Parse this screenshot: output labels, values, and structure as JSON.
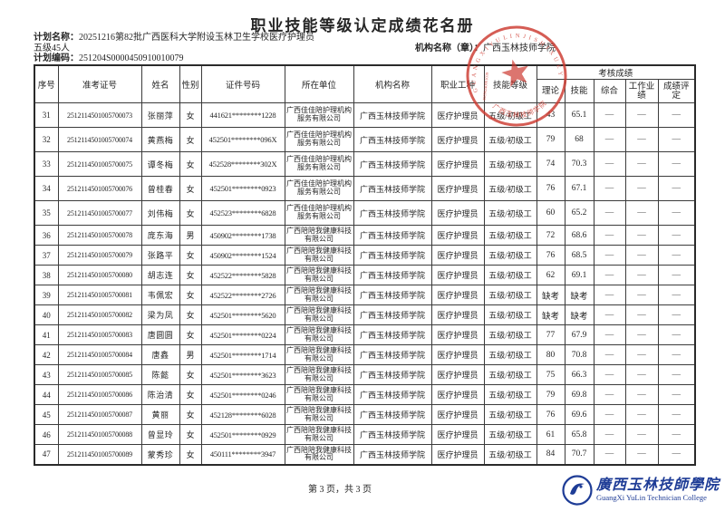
{
  "page": {
    "title": "职业技能等级认定成绩花名册",
    "plan_name_label": "计划名称：",
    "plan_name_line1": "20251216第82批广西医科大学附设玉林卫生学校医疗护理员",
    "plan_name_line2": "五级45人",
    "plan_code_label": "计划编码：",
    "plan_code": "251204S0000450910010079",
    "org_label": "机构名称（章）：",
    "org_name": "广西玉林技师学院",
    "footer_page": "第 3 页，共 3 页"
  },
  "stamp": {
    "arc_text": "G U A N G X I Y U L I N J I S H I X U E Y U A N",
    "code_text": "45090240001039",
    "bottom_text": "广西玉林技师学院",
    "color": "#cd3a30"
  },
  "logo": {
    "cn": "廣西玉林技師學院",
    "en": "GuangXi YuLin Technician College",
    "color": "#1e3c96"
  },
  "table": {
    "headers": {
      "no": "序号",
      "ticket": "准考证号",
      "name": "姓名",
      "gender": "性别",
      "id_number": "证件号码",
      "company": "所在单位",
      "org": "机构名称",
      "occupation": "职业工种",
      "level": "技能等级",
      "scores_group": "考核成绩",
      "theory": "理论",
      "skill": "技能",
      "comprehensive": "综合",
      "work_perf": "工作业绩",
      "evaluation": "成绩评定"
    },
    "rows": [
      {
        "no": "31",
        "ticket": "2512114501005700073",
        "name": "张丽萍",
        "gender": "女",
        "id_number": "441621********1228",
        "company": "广西佳佳陪护理机构服务有限公司",
        "org": "广西玉林技师学院",
        "occupation": "医疗护理员",
        "level": "五级/初级工",
        "theory": "43",
        "skill": "65.1",
        "comprehensive": "—",
        "work_perf": "—",
        "evaluation": "—"
      },
      {
        "no": "32",
        "ticket": "2512114501005700074",
        "name": "黄燕梅",
        "gender": "女",
        "id_number": "452501********096X",
        "company": "广西佳佳陪护理机构服务有限公司",
        "org": "广西玉林技师学院",
        "occupation": "医疗护理员",
        "level": "五级/初级工",
        "theory": "79",
        "skill": "68",
        "comprehensive": "—",
        "work_perf": "—",
        "evaluation": "—"
      },
      {
        "no": "33",
        "ticket": "2512114501005700075",
        "name": "谭冬梅",
        "gender": "女",
        "id_number": "452528********302X",
        "company": "广西佳佳陪护理机构服务有限公司",
        "org": "广西玉林技师学院",
        "occupation": "医疗护理员",
        "level": "五级/初级工",
        "theory": "74",
        "skill": "70.3",
        "comprehensive": "—",
        "work_perf": "—",
        "evaluation": "—"
      },
      {
        "no": "34",
        "ticket": "2512114501005700076",
        "name": "曾桂春",
        "gender": "女",
        "id_number": "452501********0923",
        "company": "广西佳佳陪护理机构服务有限公司",
        "org": "广西玉林技师学院",
        "occupation": "医疗护理员",
        "level": "五级/初级工",
        "theory": "76",
        "skill": "67.1",
        "comprehensive": "—",
        "work_perf": "—",
        "evaluation": "—"
      },
      {
        "no": "35",
        "ticket": "2512114501005700077",
        "name": "刘伟梅",
        "gender": "女",
        "id_number": "452523********6828",
        "company": "广西佳佳陪护理机构服务有限公司",
        "org": "广西玉林技师学院",
        "occupation": "医疗护理员",
        "level": "五级/初级工",
        "theory": "60",
        "skill": "65.2",
        "comprehensive": "—",
        "work_perf": "—",
        "evaluation": "—"
      },
      {
        "no": "36",
        "ticket": "2512114501005700078",
        "name": "庞东海",
        "gender": "男",
        "id_number": "450902********1738",
        "company": "广西陪陪我健康科技有限公司",
        "org": "广西玉林技师学院",
        "occupation": "医疗护理员",
        "level": "五级/初级工",
        "theory": "72",
        "skill": "68.6",
        "comprehensive": "—",
        "work_perf": "—",
        "evaluation": "—"
      },
      {
        "no": "37",
        "ticket": "2512114501005700079",
        "name": "张路平",
        "gender": "女",
        "id_number": "450902********1524",
        "company": "广西陪陪我健康科技有限公司",
        "org": "广西玉林技师学院",
        "occupation": "医疗护理员",
        "level": "五级/初级工",
        "theory": "76",
        "skill": "68.5",
        "comprehensive": "—",
        "work_perf": "—",
        "evaluation": "—"
      },
      {
        "no": "38",
        "ticket": "2512114501005700080",
        "name": "胡志连",
        "gender": "女",
        "id_number": "452522********5828",
        "company": "广西陪陪我健康科技有限公司",
        "org": "广西玉林技师学院",
        "occupation": "医疗护理员",
        "level": "五级/初级工",
        "theory": "62",
        "skill": "69.1",
        "comprehensive": "—",
        "work_perf": "—",
        "evaluation": "—"
      },
      {
        "no": "39",
        "ticket": "2512114501005700081",
        "name": "韦佩宏",
        "gender": "女",
        "id_number": "452522********2726",
        "company": "广西陪陪我健康科技有限公司",
        "org": "广西玉林技师学院",
        "occupation": "医疗护理员",
        "level": "五级/初级工",
        "theory": "缺考",
        "skill": "缺考",
        "comprehensive": "—",
        "work_perf": "—",
        "evaluation": "—"
      },
      {
        "no": "40",
        "ticket": "2512114501005700082",
        "name": "梁为凤",
        "gender": "女",
        "id_number": "452501********5620",
        "company": "广西陪陪我健康科技有限公司",
        "org": "广西玉林技师学院",
        "occupation": "医疗护理员",
        "level": "五级/初级工",
        "theory": "缺考",
        "skill": "缺考",
        "comprehensive": "—",
        "work_perf": "—",
        "evaluation": "—"
      },
      {
        "no": "41",
        "ticket": "2512114501005700083",
        "name": "唐圆圆",
        "gender": "女",
        "id_number": "452501********0224",
        "company": "广西陪陪我健康科技有限公司",
        "org": "广西玉林技师学院",
        "occupation": "医疗护理员",
        "level": "五级/初级工",
        "theory": "77",
        "skill": "67.9",
        "comprehensive": "—",
        "work_perf": "—",
        "evaluation": "—"
      },
      {
        "no": "42",
        "ticket": "2512114501005700084",
        "name": "唐鑫",
        "gender": "男",
        "id_number": "452501********1714",
        "company": "广西陪陪我健康科技有限公司",
        "org": "广西玉林技师学院",
        "occupation": "医疗护理员",
        "level": "五级/初级工",
        "theory": "80",
        "skill": "70.8",
        "comprehensive": "—",
        "work_perf": "—",
        "evaluation": "—"
      },
      {
        "no": "43",
        "ticket": "2512114501005700085",
        "name": "陈懿",
        "gender": "女",
        "id_number": "452501********3623",
        "company": "广西陪陪我健康科技有限公司",
        "org": "广西玉林技师学院",
        "occupation": "医疗护理员",
        "level": "五级/初级工",
        "theory": "75",
        "skill": "66.3",
        "comprehensive": "—",
        "work_perf": "—",
        "evaluation": "—"
      },
      {
        "no": "44",
        "ticket": "2512114501005700086",
        "name": "陈治清",
        "gender": "女",
        "id_number": "452501********0246",
        "company": "广西陪陪我健康科技有限公司",
        "org": "广西玉林技师学院",
        "occupation": "医疗护理员",
        "level": "五级/初级工",
        "theory": "79",
        "skill": "69.8",
        "comprehensive": "—",
        "work_perf": "—",
        "evaluation": "—"
      },
      {
        "no": "45",
        "ticket": "2512114501005700087",
        "name": "黄丽",
        "gender": "女",
        "id_number": "452128********6028",
        "company": "广西陪陪我健康科技有限公司",
        "org": "广西玉林技师学院",
        "occupation": "医疗护理员",
        "level": "五级/初级工",
        "theory": "76",
        "skill": "69.6",
        "comprehensive": "—",
        "work_perf": "—",
        "evaluation": "—"
      },
      {
        "no": "46",
        "ticket": "2512114501005700088",
        "name": "曾显玲",
        "gender": "女",
        "id_number": "452501********0929",
        "company": "广西陪陪我健康科技有限公司",
        "org": "广西玉林技师学院",
        "occupation": "医疗护理员",
        "level": "五级/初级工",
        "theory": "61",
        "skill": "65.8",
        "comprehensive": "—",
        "work_perf": "—",
        "evaluation": "—"
      },
      {
        "no": "47",
        "ticket": "2512114501005700089",
        "name": "蒙秀珍",
        "gender": "女",
        "id_number": "450111********3947",
        "company": "广西陪陪我健康科技有限公司",
        "org": "广西玉林技师学院",
        "occupation": "医疗护理员",
        "level": "五级/初级工",
        "theory": "84",
        "skill": "70.7",
        "comprehensive": "—",
        "work_perf": "—",
        "evaluation": "—"
      }
    ]
  }
}
